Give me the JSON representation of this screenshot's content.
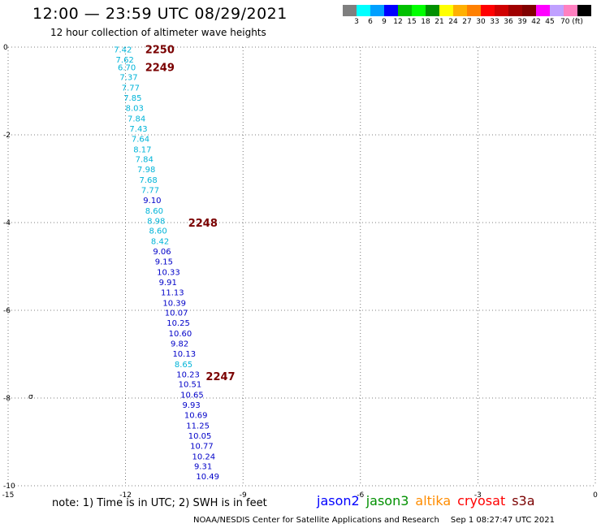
{
  "header": {
    "title": "12:00 — 23:59 UTC 08/29/2021",
    "subtitle": "12 hour collection of altimeter wave heights"
  },
  "color_scale": {
    "colors": [
      "#7f7f7f",
      "#00ffff",
      "#00a0ff",
      "#0000ff",
      "#00c000",
      "#00ff00",
      "#009000",
      "#ffff00",
      "#ffb000",
      "#ff8000",
      "#ff0000",
      "#d00000",
      "#a00000",
      "#800000",
      "#ff00ff",
      "#c0a0ff",
      "#ff80c0",
      "#000000"
    ],
    "labels": [
      "3",
      "6",
      "9",
      "12",
      "15",
      "18",
      "21",
      "24",
      "27",
      "30",
      "33",
      "36",
      "39",
      "42",
      "45",
      "70 (ft)"
    ]
  },
  "axes": {
    "x_ticks": [
      "-15",
      "-12",
      "-9",
      "-6",
      "-3",
      "0"
    ],
    "y_ticks": [
      "0",
      "-2",
      "-4",
      "-6",
      "-8",
      "-10"
    ]
  },
  "passes": [
    {
      "label": "2250",
      "lon": -11.5,
      "lat": -0.05
    },
    {
      "label": "2249",
      "lon": -11.5,
      "lat": -0.45
    },
    {
      "label": "2248",
      "lon": -10.4,
      "lat": -4.0
    },
    {
      "label": "2247",
      "lon": -9.95,
      "lat": -7.5
    }
  ],
  "wave_heights": [
    {
      "v": "7.42",
      "lon": -12.3,
      "lat": -0.05,
      "c": "#00b4d8"
    },
    {
      "v": "7.62",
      "lon": -12.25,
      "lat": -0.28,
      "c": "#00b4d8"
    },
    {
      "v": "6.70",
      "lon": -12.2,
      "lat": -0.45,
      "c": "#00b4d8"
    },
    {
      "v": "7.37",
      "lon": -12.15,
      "lat": -0.68,
      "c": "#00b4d8"
    },
    {
      "v": "7.77",
      "lon": -12.1,
      "lat": -0.92,
      "c": "#00b4d8"
    },
    {
      "v": "7.85",
      "lon": -12.05,
      "lat": -1.15,
      "c": "#00b4d8"
    },
    {
      "v": "8.03",
      "lon": -12.0,
      "lat": -1.38,
      "c": "#00b4d8"
    },
    {
      "v": "7.84",
      "lon": -11.95,
      "lat": -1.62,
      "c": "#00b4d8"
    },
    {
      "v": "7.43",
      "lon": -11.9,
      "lat": -1.85,
      "c": "#00b4d8"
    },
    {
      "v": "7.64",
      "lon": -11.85,
      "lat": -2.08,
      "c": "#00b4d8"
    },
    {
      "v": "8.17",
      "lon": -11.8,
      "lat": -2.32,
      "c": "#00b4d8"
    },
    {
      "v": "7.84",
      "lon": -11.75,
      "lat": -2.55,
      "c": "#00b4d8"
    },
    {
      "v": "7.98",
      "lon": -11.7,
      "lat": -2.78,
      "c": "#00b4d8"
    },
    {
      "v": "7.68",
      "lon": -11.65,
      "lat": -3.02,
      "c": "#00b4d8"
    },
    {
      "v": "7.77",
      "lon": -11.6,
      "lat": -3.25,
      "c": "#00b4d8"
    },
    {
      "v": "9.10",
      "lon": -11.55,
      "lat": -3.48,
      "c": "#0000c8"
    },
    {
      "v": "8.60",
      "lon": -11.5,
      "lat": -3.72,
      "c": "#00b4d8"
    },
    {
      "v": "8.98",
      "lon": -11.45,
      "lat": -3.95,
      "c": "#00b4d8"
    },
    {
      "v": "8.60",
      "lon": -11.4,
      "lat": -4.18,
      "c": "#00b4d8"
    },
    {
      "v": "8.42",
      "lon": -11.35,
      "lat": -4.42,
      "c": "#00b4d8"
    },
    {
      "v": "9.06",
      "lon": -11.3,
      "lat": -4.65,
      "c": "#0000c8"
    },
    {
      "v": "9.15",
      "lon": -11.25,
      "lat": -4.88,
      "c": "#0000c8"
    },
    {
      "v": "10.33",
      "lon": -11.2,
      "lat": -5.12,
      "c": "#0000c8"
    },
    {
      "v": "9.91",
      "lon": -11.15,
      "lat": -5.35,
      "c": "#0000c8"
    },
    {
      "v": "11.13",
      "lon": -11.1,
      "lat": -5.58,
      "c": "#0000c8"
    },
    {
      "v": "10.39",
      "lon": -11.05,
      "lat": -5.82,
      "c": "#0000c8"
    },
    {
      "v": "10.07",
      "lon": -11.0,
      "lat": -6.05,
      "c": "#0000c8"
    },
    {
      "v": "10.25",
      "lon": -10.95,
      "lat": -6.28,
      "c": "#0000c8"
    },
    {
      "v": "10.60",
      "lon": -10.9,
      "lat": -6.52,
      "c": "#0000c8"
    },
    {
      "v": "9.82",
      "lon": -10.85,
      "lat": -6.75,
      "c": "#0000c8"
    },
    {
      "v": "10.13",
      "lon": -10.8,
      "lat": -6.98,
      "c": "#0000c8"
    },
    {
      "v": "8.65",
      "lon": -10.75,
      "lat": -7.22,
      "c": "#00b4d8"
    },
    {
      "v": "10.23",
      "lon": -10.7,
      "lat": -7.45,
      "c": "#0000c8"
    },
    {
      "v": "10.51",
      "lon": -10.65,
      "lat": -7.68,
      "c": "#0000c8"
    },
    {
      "v": "10.65",
      "lon": -10.6,
      "lat": -7.92,
      "c": "#0000c8"
    },
    {
      "v": "9.93",
      "lon": -10.55,
      "lat": -8.15,
      "c": "#0000c8"
    },
    {
      "v": "10.69",
      "lon": -10.5,
      "lat": -8.38,
      "c": "#0000c8"
    },
    {
      "v": "11.25",
      "lon": -10.45,
      "lat": -8.62,
      "c": "#0000c8"
    },
    {
      "v": "10.05",
      "lon": -10.4,
      "lat": -8.85,
      "c": "#0000c8"
    },
    {
      "v": "10.77",
      "lon": -10.35,
      "lat": -9.08,
      "c": "#0000c8"
    },
    {
      "v": "10.24",
      "lon": -10.3,
      "lat": -9.32,
      "c": "#0000c8"
    },
    {
      "v": "9.31",
      "lon": -10.25,
      "lat": -9.55,
      "c": "#0000c8"
    },
    {
      "v": "10.49",
      "lon": -10.2,
      "lat": -9.78,
      "c": "#0000c8"
    }
  ],
  "note": "note:  1) Time is in UTC; 2) SWH is in feet",
  "satellites": [
    {
      "name": "jason2",
      "color": "#0000ff"
    },
    {
      "name": "jason3",
      "color": "#009000"
    },
    {
      "name": "altika",
      "color": "#ff8c00"
    },
    {
      "name": "cryosat",
      "color": "#ff0000"
    },
    {
      "name": "s3a",
      "color": "#7a0000"
    }
  ],
  "footer": {
    "credit": "NOAA/NESDIS Center for Satellite Applications and Research",
    "timestamp": "Sep  1 08:27:47 UTC 2021"
  }
}
